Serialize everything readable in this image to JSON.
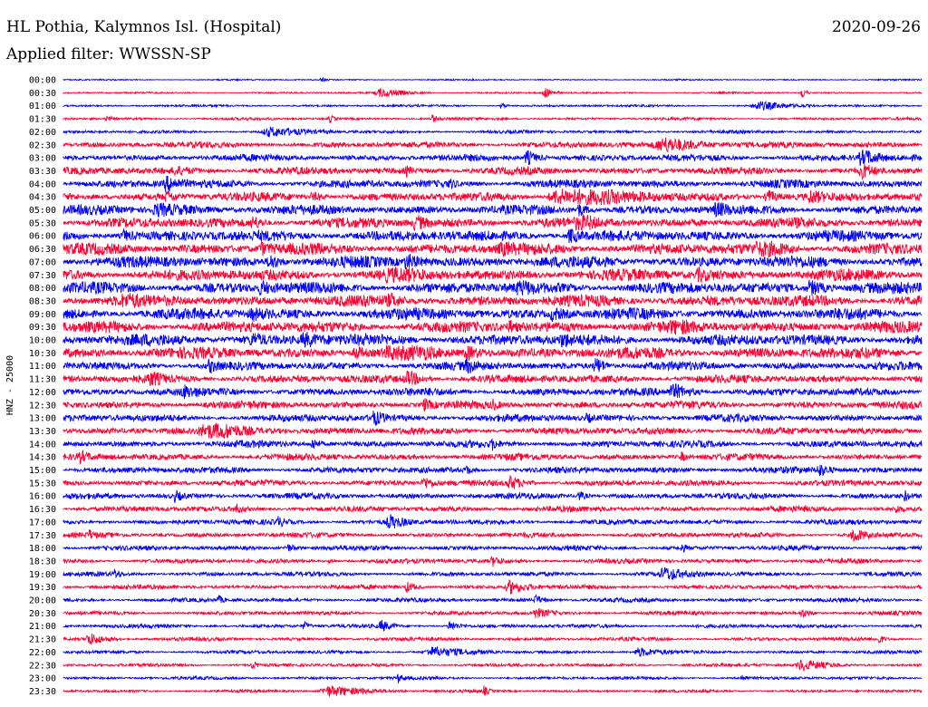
{
  "header": {
    "station": "HL Pothia, Kalymnos Isl. (Hospital)",
    "date": "2020-09-26",
    "filter": "Applied filter: WWSSN-SP"
  },
  "colors": {
    "background": "#ffffff",
    "trace_a": "#0000ff",
    "trace_b": "#ff0033",
    "text": "#000000"
  },
  "chart_data": {
    "type": "helicorder",
    "ylabel": "HNZ - 25000",
    "row_colors": [
      "#0000ff",
      "#ff0033"
    ],
    "rows": [
      {
        "label": "00:00",
        "events": [
          [
            0.3,
            0.5,
            1.0
          ]
        ]
      },
      {
        "label": "00:30",
        "events": [
          [
            0.37,
            0.6,
            6.0
          ],
          [
            0.56,
            0.8,
            2.0
          ],
          [
            0.86,
            0.9,
            1.0
          ]
        ]
      },
      {
        "label": "01:00",
        "events": [
          [
            0.81,
            0.6,
            6.5
          ],
          [
            0.51,
            0.5,
            1.0
          ]
        ]
      },
      {
        "label": "01:30",
        "events": [
          [
            0.05,
            0.4,
            1.0
          ],
          [
            0.31,
            0.6,
            1.0
          ],
          [
            0.43,
            0.6,
            1.0
          ]
        ]
      },
      {
        "label": "02:00",
        "events": [
          [
            0.24,
            0.6,
            7.5
          ]
        ]
      },
      {
        "label": "02:30",
        "events": [
          [
            0.7,
            0.9,
            10.0
          ]
        ]
      },
      {
        "label": "03:00",
        "events": [
          [
            0.54,
            1.0,
            2.5
          ],
          [
            0.93,
            1.3,
            3.0
          ]
        ]
      },
      {
        "label": "03:30",
        "events": [
          [
            0.93,
            1.0,
            2.5
          ],
          [
            0.13,
            0.4,
            3.0
          ],
          [
            0.4,
            0.6,
            1.0
          ]
        ]
      },
      {
        "label": "04:00",
        "events": [
          [
            0.12,
            1.1,
            2.5
          ],
          [
            0.45,
            0.5,
            1.0
          ]
        ]
      },
      {
        "label": "04:30",
        "events": [
          [
            0.58,
            1.3,
            13.0
          ],
          [
            0.82,
            1.0,
            2.5
          ],
          [
            0.12,
            0.6,
            2.0
          ],
          [
            0.87,
            0.8,
            2.0
          ],
          [
            0.29,
            0.6,
            2.0
          ]
        ]
      },
      {
        "label": "05:00",
        "events": [
          [
            0.76,
            1.0,
            2.0
          ],
          [
            0.11,
            0.7,
            6.0
          ],
          [
            0.6,
            0.8,
            2.0
          ]
        ]
      },
      {
        "label": "05:30",
        "events": [
          [
            0.6,
            1.3,
            2.5
          ],
          [
            0.41,
            1.0,
            2.0
          ],
          [
            0.22,
            0.8,
            2.0
          ]
        ]
      },
      {
        "label": "06:00",
        "events": [
          [
            0.59,
            1.0,
            2.0
          ],
          [
            0.07,
            0.7,
            2.0
          ]
        ]
      },
      {
        "label": "06:30",
        "events": [
          [
            0.81,
            1.3,
            4.0
          ],
          [
            0.51,
            0.9,
            2.0
          ],
          [
            0.23,
            0.7,
            2.0
          ]
        ]
      },
      {
        "label": "07:00",
        "events": [
          [
            0.24,
            1.1,
            2.0
          ],
          [
            0.4,
            0.9,
            3.0
          ]
        ]
      },
      {
        "label": "07:30",
        "events": [
          [
            0.38,
            0.9,
            4.0
          ],
          [
            0.74,
            0.7,
            3.0
          ]
        ]
      },
      {
        "label": "08:00",
        "events": [
          [
            0.53,
            1.2,
            2.0
          ],
          [
            0.87,
            1.2,
            3.0
          ],
          [
            0.23,
            0.8,
            2.0
          ]
        ]
      },
      {
        "label": "08:30",
        "events": [
          [
            0.07,
            0.8,
            2.0
          ],
          [
            0.38,
            0.7,
            2.0
          ]
        ]
      },
      {
        "label": "09:00",
        "events": [
          [
            0.57,
            0.8,
            3.0
          ],
          [
            0.22,
            0.6,
            2.5
          ]
        ]
      },
      {
        "label": "09:30",
        "events": [
          [
            0.71,
            0.9,
            2.5
          ],
          [
            0.52,
            0.7,
            1.0
          ]
        ]
      },
      {
        "label": "10:00",
        "events": [
          [
            0.58,
            1.0,
            1.5
          ],
          [
            0.28,
            0.9,
            3.0
          ],
          [
            0.22,
            0.8,
            2.0
          ]
        ]
      },
      {
        "label": "10:30",
        "events": [
          [
            0.38,
            1.2,
            5.0
          ],
          [
            0.34,
            1.0,
            1.5
          ],
          [
            0.47,
            0.8,
            3.0
          ]
        ]
      },
      {
        "label": "11:00",
        "events": [
          [
            0.62,
            1.3,
            2.0
          ],
          [
            0.17,
            0.8,
            1.5
          ],
          [
            0.47,
            0.7,
            2.0
          ]
        ]
      },
      {
        "label": "11:30",
        "events": [
          [
            0.1,
            1.0,
            2.0
          ],
          [
            0.4,
            1.1,
            3.0
          ]
        ]
      },
      {
        "label": "12:00",
        "events": [
          [
            0.71,
            1.0,
            4.0
          ],
          [
            0.14,
            0.6,
            2.0
          ]
        ]
      },
      {
        "label": "12:30",
        "events": [
          [
            0.42,
            0.8,
            1.5
          ],
          [
            0.5,
            0.6,
            1.0
          ]
        ]
      },
      {
        "label": "13:00",
        "events": [
          [
            0.36,
            1.0,
            2.0
          ],
          [
            0.61,
            0.6,
            1.0
          ]
        ]
      },
      {
        "label": "13:30",
        "events": [
          [
            0.17,
            1.1,
            9.0
          ]
        ]
      },
      {
        "label": "14:00",
        "events": [
          [
            0.29,
            0.8,
            1.5
          ],
          [
            0.5,
            0.6,
            1.0
          ]
        ]
      },
      {
        "label": "14:30",
        "events": [
          [
            0.02,
            0.6,
            1.5
          ],
          [
            0.72,
            0.6,
            1.0
          ]
        ]
      },
      {
        "label": "15:00",
        "events": [
          [
            0.88,
            0.8,
            2.0
          ],
          [
            0.47,
            0.6,
            1.0
          ]
        ]
      },
      {
        "label": "15:30",
        "events": [
          [
            0.42,
            0.8,
            2.0
          ],
          [
            0.52,
            0.9,
            3.0
          ]
        ]
      },
      {
        "label": "16:00",
        "events": [
          [
            0.13,
            0.7,
            1.5
          ],
          [
            0.6,
            0.7,
            1.5
          ],
          [
            0.98,
            0.7,
            1.0
          ]
        ]
      },
      {
        "label": "16:30",
        "events": [
          [
            0.2,
            0.6,
            1.5
          ],
          [
            0.97,
            0.6,
            1.0
          ]
        ]
      },
      {
        "label": "17:00",
        "events": [
          [
            0.38,
            0.9,
            3.0
          ],
          [
            0.25,
            0.6,
            1.5
          ]
        ]
      },
      {
        "label": "17:30",
        "events": [
          [
            0.92,
            1.2,
            2.0
          ],
          [
            0.03,
            0.5,
            1.0
          ]
        ]
      },
      {
        "label": "18:00",
        "events": [
          [
            0.26,
            0.6,
            2.0
          ],
          [
            0.72,
            0.6,
            1.0
          ]
        ]
      },
      {
        "label": "18:30",
        "events": [
          [
            0.5,
            0.6,
            2.0
          ],
          [
            0.31,
            0.5,
            1.0
          ]
        ]
      },
      {
        "label": "19:00",
        "events": [
          [
            0.7,
            0.8,
            5.0
          ],
          [
            0.06,
            0.6,
            1.0
          ]
        ]
      },
      {
        "label": "19:30",
        "events": [
          [
            0.52,
            0.9,
            4.0
          ],
          [
            0.4,
            0.7,
            2.0
          ]
        ]
      },
      {
        "label": "20:00",
        "events": [
          [
            0.55,
            0.7,
            1.5
          ],
          [
            0.18,
            0.6,
            1.0
          ]
        ]
      },
      {
        "label": "20:30",
        "events": [
          [
            0.55,
            0.6,
            3.0
          ],
          [
            0.86,
            0.6,
            2.0
          ]
        ]
      },
      {
        "label": "21:00",
        "events": [
          [
            0.37,
            0.7,
            2.0
          ],
          [
            0.45,
            0.7,
            2.0
          ],
          [
            0.28,
            0.6,
            1.0
          ]
        ]
      },
      {
        "label": "21:30",
        "events": [
          [
            0.03,
            0.8,
            4.0
          ],
          [
            0.95,
            0.6,
            1.0
          ]
        ]
      },
      {
        "label": "22:00",
        "events": [
          [
            0.43,
            0.6,
            7.0
          ],
          [
            0.67,
            0.6,
            4.0
          ]
        ]
      },
      {
        "label": "22:30",
        "events": [
          [
            0.86,
            0.8,
            5.0
          ],
          [
            0.22,
            0.6,
            1.0
          ]
        ]
      },
      {
        "label": "23:00",
        "events": [
          [
            0.39,
            0.6,
            1.0
          ],
          [
            0.79,
            0.5,
            1.0
          ]
        ]
      },
      {
        "label": "23:30",
        "events": [
          [
            0.31,
            0.7,
            9.0
          ],
          [
            0.49,
            0.6,
            1.0
          ]
        ]
      }
    ]
  }
}
